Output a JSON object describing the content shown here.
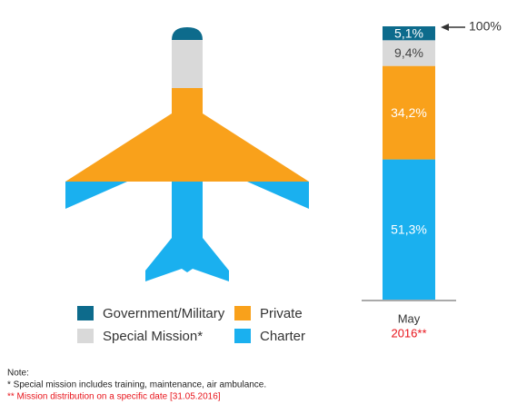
{
  "chart_data": {
    "type": "stacked_bar",
    "categories": [
      "May"
    ],
    "category_notes": [
      "2016**"
    ],
    "ylim": [
      0,
      100
    ],
    "series": [
      {
        "name": "Charter",
        "color": "#1ab0ef",
        "values": [
          51.3
        ],
        "value_labels": [
          "51,3%"
        ]
      },
      {
        "name": "Private",
        "color": "#f9a11b",
        "values": [
          34.2
        ],
        "value_labels": [
          "34,2%"
        ]
      },
      {
        "name": "Special Mission*",
        "color": "#d9d9d9",
        "values": [
          9.4
        ],
        "value_labels": [
          "9,4%"
        ]
      },
      {
        "name": "Government/Military",
        "color": "#0d6b8c",
        "values": [
          5.1
        ],
        "value_labels": [
          "5,1%"
        ]
      }
    ],
    "annotation": "100%",
    "notes": {
      "title": "Note:",
      "lines": [
        "* Special mission includes training, maintenance, air ambulance.",
        "** Mission distribution on a specific date [31.05.2016]"
      ]
    }
  }
}
